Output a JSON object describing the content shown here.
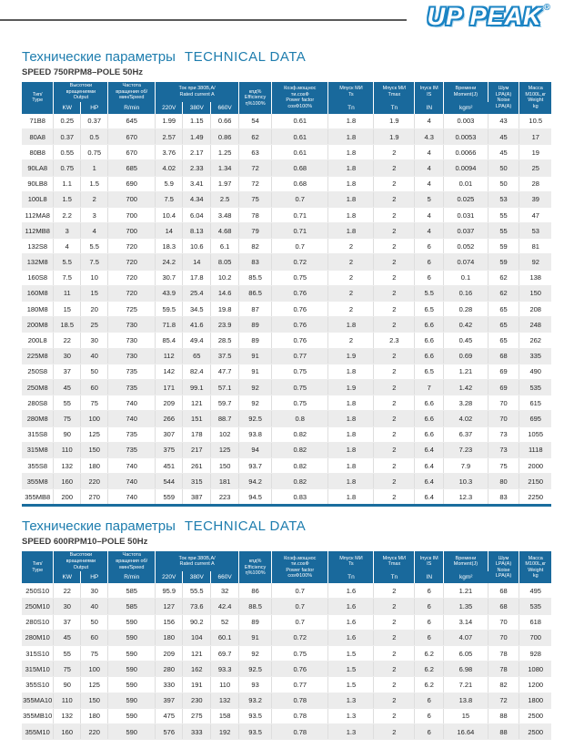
{
  "logo": {
    "text": "UP PEAK",
    "registered": "®"
  },
  "columns": {
    "type": "Тип/\nType",
    "output_label": "Высотоки\nвращениями\nOutput",
    "output_sub": [
      "KW",
      "HP"
    ],
    "speed_label": "Частота\nвращения об/\nмин/Speed",
    "speed_sub": "R/min",
    "current_label": "Ток при 380В,A/\nRated current A",
    "current_sub": [
      "220V",
      "380V",
      "660V"
    ],
    "efficiency": "кпд%\nEfficiency\nη%100%",
    "power_factor": "Коэф.мощнос\nти.cosФ\nPower factor\ncosФ100%",
    "torque_start_label": "Мпуск МИ\nTs",
    "torque_start_sub": "Tn",
    "torque_max_label": "Мпуск МИ\nTmax",
    "torque_max_sub": "Tn",
    "current_start_label": "Іпуск ІМ\nIS",
    "current_start_sub": "IN",
    "moment_label": "Времени\nMoment(J)",
    "moment_sub": "kgm²",
    "noise": "Шум\nLPA(A)\nNoise\nLPA(A)",
    "weight": "Масса\nM100L,кг\nWeight\nkg"
  },
  "sections": [
    {
      "title_ru": "Технические параметры",
      "title_en": "TECHNICAL DATA",
      "subtitle": "SPEED 750RPM8–POLE 50Hz",
      "rows": [
        [
          "71B8",
          "0.25",
          "0.37",
          "645",
          "1.99",
          "1.15",
          "0.66",
          "54",
          "0.61",
          "1.8",
          "1.9",
          "4",
          "0.003",
          "43",
          "10.5"
        ],
        [
          "80A8",
          "0.37",
          "0.5",
          "670",
          "2.57",
          "1.49",
          "0.86",
          "62",
          "0.61",
          "1.8",
          "1.9",
          "4.3",
          "0.0053",
          "45",
          "17"
        ],
        [
          "80B8",
          "0.55",
          "0.75",
          "670",
          "3.76",
          "2.17",
          "1.25",
          "63",
          "0.61",
          "1.8",
          "2",
          "4",
          "0.0066",
          "45",
          "19"
        ],
        [
          "90LA8",
          "0.75",
          "1",
          "685",
          "4.02",
          "2.33",
          "1.34",
          "72",
          "0.68",
          "1.8",
          "2",
          "4",
          "0.0094",
          "50",
          "25"
        ],
        [
          "90LB8",
          "1.1",
          "1.5",
          "690",
          "5.9",
          "3.41",
          "1.97",
          "72",
          "0.68",
          "1.8",
          "2",
          "4",
          "0.01",
          "50",
          "28"
        ],
        [
          "100L8",
          "1.5",
          "2",
          "700",
          "7.5",
          "4.34",
          "2.5",
          "75",
          "0.7",
          "1.8",
          "2",
          "5",
          "0.025",
          "53",
          "39"
        ],
        [
          "112MA8",
          "2.2",
          "3",
          "700",
          "10.4",
          "6.04",
          "3.48",
          "78",
          "0.71",
          "1.8",
          "2",
          "4",
          "0.031",
          "55",
          "47"
        ],
        [
          "112MB8",
          "3",
          "4",
          "700",
          "14",
          "8.13",
          "4.68",
          "79",
          "0.71",
          "1.8",
          "2",
          "4",
          "0.037",
          "55",
          "53"
        ],
        [
          "132S8",
          "4",
          "5.5",
          "720",
          "18.3",
          "10.6",
          "6.1",
          "82",
          "0.7",
          "2",
          "2",
          "6",
          "0.052",
          "59",
          "81"
        ],
        [
          "132M8",
          "5.5",
          "7.5",
          "720",
          "24.2",
          "14",
          "8.05",
          "83",
          "0.72",
          "2",
          "2",
          "6",
          "0.074",
          "59",
          "92"
        ],
        [
          "160S8",
          "7.5",
          "10",
          "720",
          "30.7",
          "17.8",
          "10.2",
          "85.5",
          "0.75",
          "2",
          "2",
          "6",
          "0.1",
          "62",
          "138"
        ],
        [
          "160M8",
          "11",
          "15",
          "720",
          "43.9",
          "25.4",
          "14.6",
          "86.5",
          "0.76",
          "2",
          "2",
          "5.5",
          "0.16",
          "62",
          "150"
        ],
        [
          "180M8",
          "15",
          "20",
          "725",
          "59.5",
          "34.5",
          "19.8",
          "87",
          "0.76",
          "2",
          "2",
          "6.5",
          "0.28",
          "65",
          "208"
        ],
        [
          "200M8",
          "18.5",
          "25",
          "730",
          "71.8",
          "41.6",
          "23.9",
          "89",
          "0.76",
          "1.8",
          "2",
          "6.6",
          "0.42",
          "65",
          "248"
        ],
        [
          "200L8",
          "22",
          "30",
          "730",
          "85.4",
          "49.4",
          "28.5",
          "89",
          "0.76",
          "2",
          "2.3",
          "6.6",
          "0.45",
          "65",
          "262"
        ],
        [
          "225M8",
          "30",
          "40",
          "730",
          "112",
          "65",
          "37.5",
          "91",
          "0.77",
          "1.9",
          "2",
          "6.6",
          "0.69",
          "68",
          "335"
        ],
        [
          "250S8",
          "37",
          "50",
          "735",
          "142",
          "82.4",
          "47.7",
          "91",
          "0.75",
          "1.8",
          "2",
          "6.5",
          "1.21",
          "69",
          "490"
        ],
        [
          "250M8",
          "45",
          "60",
          "735",
          "171",
          "99.1",
          "57.1",
          "92",
          "0.75",
          "1.9",
          "2",
          "7",
          "1.42",
          "69",
          "535"
        ],
        [
          "280S8",
          "55",
          "75",
          "740",
          "209",
          "121",
          "59.7",
          "92",
          "0.75",
          "1.8",
          "2",
          "6.6",
          "3.28",
          "70",
          "615"
        ],
        [
          "280M8",
          "75",
          "100",
          "740",
          "266",
          "151",
          "88.7",
          "92.5",
          "0.8",
          "1.8",
          "2",
          "6.6",
          "4.02",
          "70",
          "695"
        ],
        [
          "315S8",
          "90",
          "125",
          "735",
          "307",
          "178",
          "102",
          "93.8",
          "0.82",
          "1.8",
          "2",
          "6.6",
          "6.37",
          "73",
          "1055"
        ],
        [
          "315M8",
          "110",
          "150",
          "735",
          "375",
          "217",
          "125",
          "94",
          "0.82",
          "1.8",
          "2",
          "6.4",
          "7.23",
          "73",
          "1118"
        ],
        [
          "355S8",
          "132",
          "180",
          "740",
          "451",
          "261",
          "150",
          "93.7",
          "0.82",
          "1.8",
          "2",
          "6.4",
          "7.9",
          "75",
          "2000"
        ],
        [
          "355M8",
          "160",
          "220",
          "740",
          "544",
          "315",
          "181",
          "94.2",
          "0.82",
          "1.8",
          "2",
          "6.4",
          "10.3",
          "80",
          "2150"
        ],
        [
          "355MB8",
          "200",
          "270",
          "740",
          "559",
          "387",
          "223",
          "94.5",
          "0.83",
          "1.8",
          "2",
          "6.4",
          "12.3",
          "83",
          "2250"
        ]
      ]
    },
    {
      "title_ru": "Технические параметры",
      "title_en": "TECHNICAL DATA",
      "subtitle": "SPEED 600RPM10–POLE 50Hz",
      "rows": [
        [
          "250S10",
          "22",
          "30",
          "585",
          "95.9",
          "55.5",
          "32",
          "86",
          "0.7",
          "1.6",
          "2",
          "6",
          "1.21",
          "68",
          "495"
        ],
        [
          "250M10",
          "30",
          "40",
          "585",
          "127",
          "73.6",
          "42.4",
          "88.5",
          "0.7",
          "1.6",
          "2",
          "6",
          "1.35",
          "68",
          "535"
        ],
        [
          "280S10",
          "37",
          "50",
          "590",
          "156",
          "90.2",
          "52",
          "89",
          "0.7",
          "1.6",
          "2",
          "6",
          "3.14",
          "70",
          "618"
        ],
        [
          "280M10",
          "45",
          "60",
          "590",
          "180",
          "104",
          "60.1",
          "91",
          "0.72",
          "1.6",
          "2",
          "6",
          "4.07",
          "70",
          "700"
        ],
        [
          "315S10",
          "55",
          "75",
          "590",
          "209",
          "121",
          "69.7",
          "92",
          "0.75",
          "1.5",
          "2",
          "6.2",
          "6.05",
          "78",
          "928"
        ],
        [
          "315M10",
          "75",
          "100",
          "590",
          "280",
          "162",
          "93.3",
          "92.5",
          "0.76",
          "1.5",
          "2",
          "6.2",
          "6.98",
          "78",
          "1080"
        ],
        [
          "355S10",
          "90",
          "125",
          "590",
          "330",
          "191",
          "110",
          "93",
          "0.77",
          "1.5",
          "2",
          "6.2",
          "7.21",
          "82",
          "1200"
        ],
        [
          "355MA10",
          "110",
          "150",
          "590",
          "397",
          "230",
          "132",
          "93.2",
          "0.78",
          "1.3",
          "2",
          "6",
          "13.8",
          "72",
          "1800"
        ],
        [
          "355MB10",
          "132",
          "180",
          "590",
          "475",
          "275",
          "158",
          "93.5",
          "0.78",
          "1.3",
          "2",
          "6",
          "15",
          "88",
          "2500"
        ],
        [
          "355M10",
          "160",
          "220",
          "590",
          "576",
          "333",
          "192",
          "93.5",
          "0.78",
          "1.3",
          "2",
          "6",
          "16.64",
          "88",
          "2500"
        ]
      ]
    }
  ],
  "colors": {
    "header_bg": "#19699c",
    "title_accent": "#1e7dae",
    "logo_blue": "#1b84c4",
    "row_stripe": "#ececec"
  }
}
